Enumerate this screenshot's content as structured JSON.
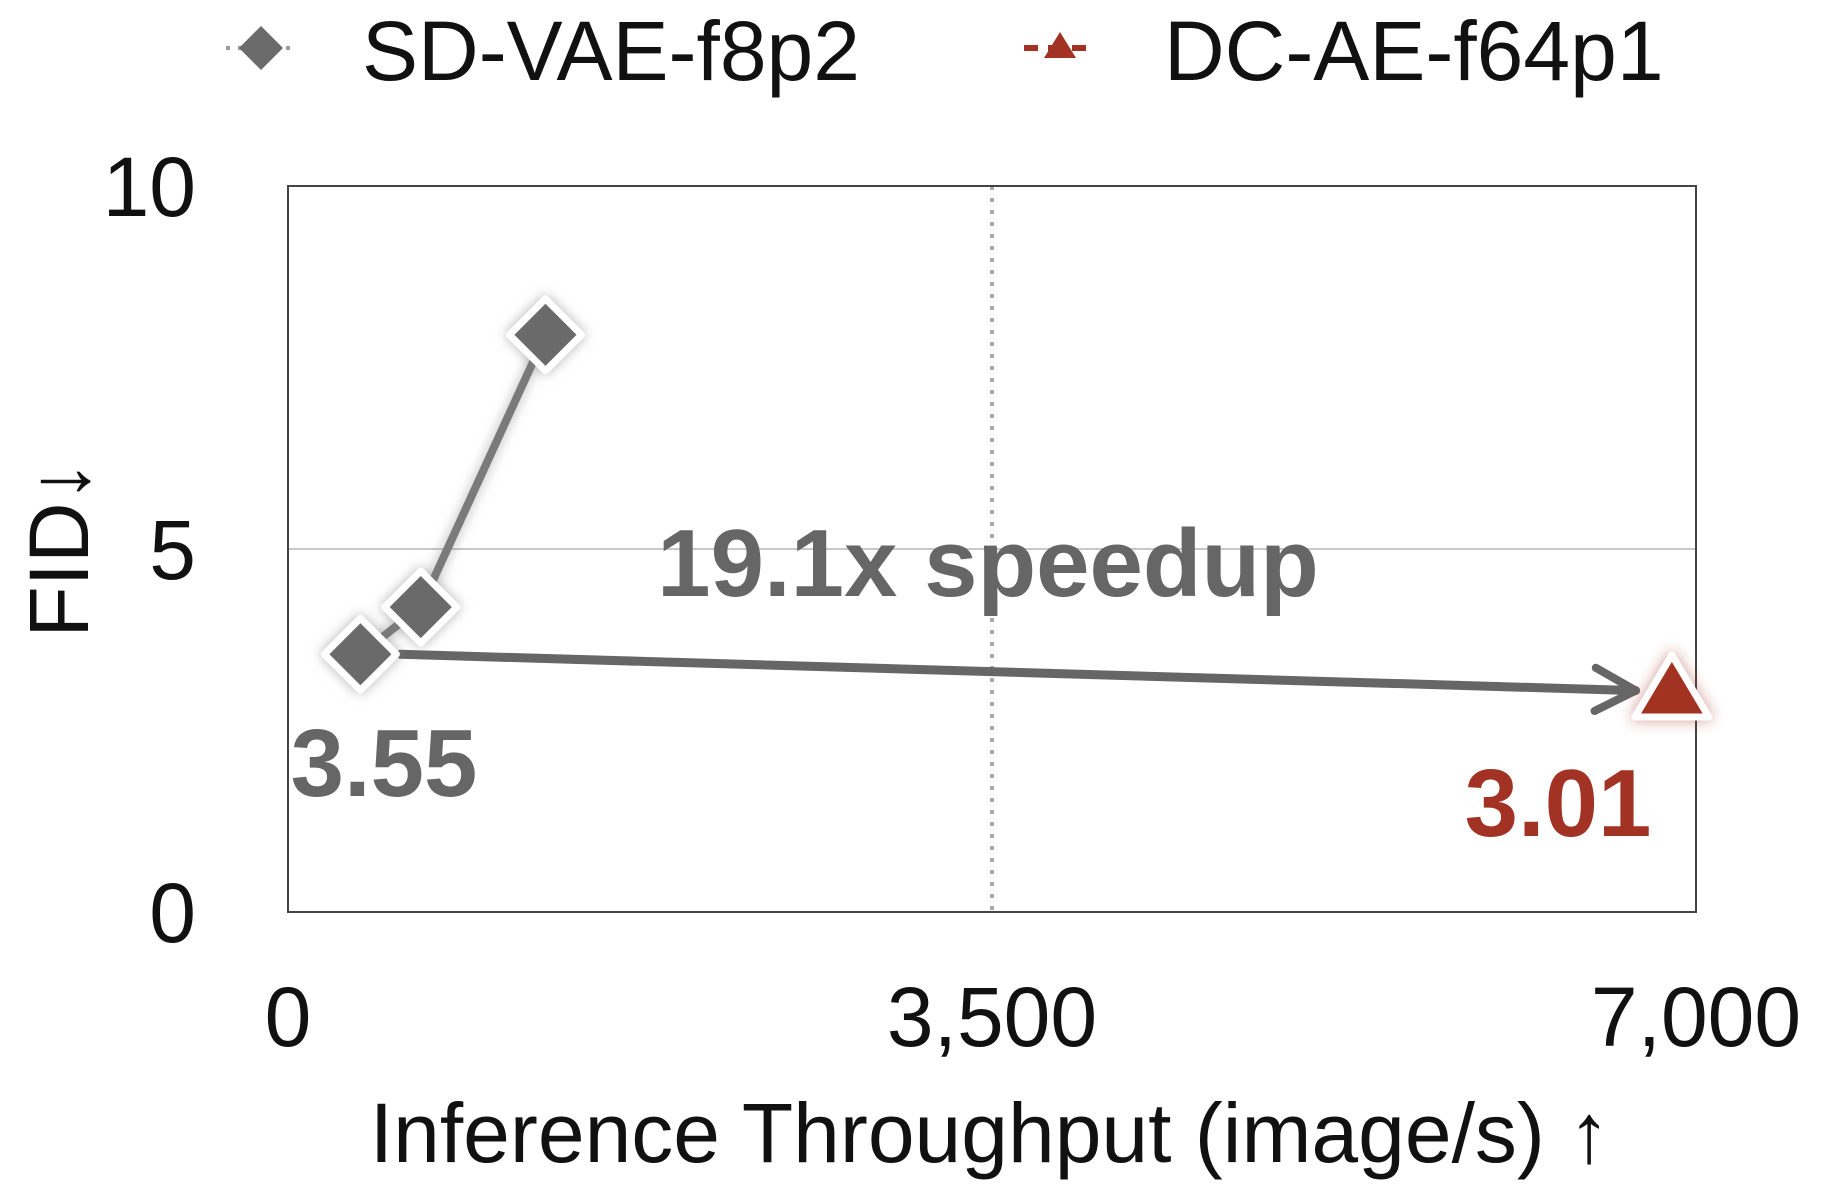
{
  "chart_data": {
    "type": "scatter",
    "xlabel": "Inference Throughput (image/s) ↑",
    "ylabel": "FID↓",
    "xlim": [
      0,
      7000
    ],
    "ylim": [
      0,
      10
    ],
    "x_ticks": [
      {
        "value": 0,
        "label": "0"
      },
      {
        "value": 3500,
        "label": "3,500"
      },
      {
        "value": 7000,
        "label": "7,000"
      }
    ],
    "y_ticks": [
      {
        "value": 0,
        "label": "0"
      },
      {
        "value": 5,
        "label": "5"
      },
      {
        "value": 10,
        "label": "10"
      }
    ],
    "grid": {
      "horizontal_at": [
        5
      ],
      "vertical_dotted_at": [
        3500
      ]
    },
    "legend_position": "top",
    "series": [
      {
        "name": "SD-VAE-f8p2",
        "marker": "diamond",
        "color": "#6b6b6b",
        "connected": true,
        "points": [
          {
            "x": 360,
            "y": 3.55
          },
          {
            "x": 660,
            "y": 4.2
          },
          {
            "x": 1280,
            "y": 7.95
          }
        ]
      },
      {
        "name": "DC-AE-f64p1",
        "marker": "triangle",
        "color": "#a23324",
        "connected": false,
        "points": [
          {
            "x": 6880,
            "y": 3.01
          }
        ]
      }
    ],
    "annotations": {
      "speedup_text": "19.1x speedup",
      "speedup_color": "#666666",
      "speedup_arrow_from": {
        "x": 560,
        "y": 3.55
      },
      "speedup_arrow_to": {
        "x": 6700,
        "y": 3.05
      },
      "baseline_label": "3.55",
      "baseline_label_color": "#666666",
      "dcae_label": "3.01",
      "dcae_label_color": "#a23324"
    }
  }
}
